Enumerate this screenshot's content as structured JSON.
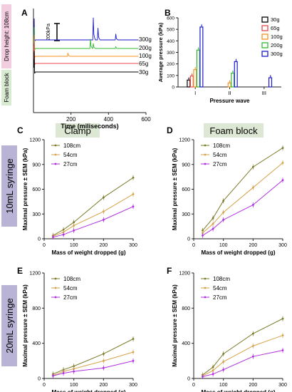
{
  "panel_letters": {
    "a": "A",
    "b": "B",
    "c": "C",
    "d": "D",
    "e": "E",
    "f": "F"
  },
  "side_labels": {
    "drop_height": "Drop height: 108cm",
    "foam_block": "Foam block"
  },
  "row_labels": {
    "syringe_10": "10mL syringe",
    "syringe_20": "20mL syringe"
  },
  "column_headers": {
    "clamp": "Clamp",
    "foam": "Foam block"
  },
  "colors": {
    "w30": "#000000",
    "w65": "#e8474c",
    "w100": "#f6921e",
    "w200": "#2fbb2f",
    "w300": "#1a1acc",
    "h108": "#7b7b2a",
    "h54": "#d6a24a",
    "h27": "#b02ee0",
    "drop_height_box": "#f2cde0",
    "foam_block_box": "#d8ead2",
    "header_box": "#dde8d4",
    "row_box": "#b9b3d6"
  },
  "chart_data": [
    {
      "id": "A",
      "type": "line",
      "xlabel": "Time (miliseconds)",
      "xlim": [
        0,
        600
      ],
      "xticks": [
        200,
        400,
        600
      ],
      "scale_bar": "200kPa",
      "series": [
        {
          "name": "300g",
          "peaks": [
            [
              320,
              260
            ],
            [
              345,
              140
            ],
            [
              440,
              70
            ]
          ]
        },
        {
          "name": "200g",
          "peaks": [
            [
              305,
              110
            ],
            [
              320,
              60
            ],
            [
              440,
              20
            ]
          ]
        },
        {
          "name": "100g",
          "peaks": [
            [
              185,
              40
            ]
          ]
        },
        {
          "name": "65g",
          "peaks": []
        },
        {
          "name": "30g",
          "peaks": []
        }
      ]
    },
    {
      "id": "B",
      "type": "bar",
      "ylabel": "Average pressure (kPa)",
      "xlabel": "Pressure wave",
      "ylim": [
        0,
        600
      ],
      "yticks": [
        0,
        100,
        200,
        300,
        400,
        500,
        600
      ],
      "categories": [
        "I",
        "II",
        "III"
      ],
      "legend_position": "top-right",
      "series": [
        {
          "name": "30g",
          "values": [
            60,
            null,
            null
          ]
        },
        {
          "name": "65g",
          "values": [
            95,
            null,
            null
          ]
        },
        {
          "name": "100g",
          "values": [
            150,
            35,
            null
          ]
        },
        {
          "name": "200g",
          "values": [
            320,
            120,
            null
          ]
        },
        {
          "name": "300g",
          "values": [
            520,
            220,
            80
          ]
        }
      ]
    },
    {
      "id": "C",
      "type": "line",
      "xlabel": "Mass of weight dropped (g)",
      "ylabel": "Maximal pressure ± SEM (kPa)",
      "xlim": [
        0,
        300
      ],
      "ylim": [
        0,
        1200
      ],
      "xticks": [
        0,
        100,
        200,
        300
      ],
      "yticks": [
        0,
        300,
        600,
        900,
        1200
      ],
      "x": [
        30,
        65,
        100,
        200,
        300
      ],
      "series": [
        {
          "name": "108cm",
          "values": [
            40,
            110,
            200,
            500,
            740
          ]
        },
        {
          "name": "54cm",
          "values": [
            30,
            80,
            160,
            330,
            540
          ]
        },
        {
          "name": "27cm",
          "values": [
            20,
            50,
            100,
            230,
            390
          ]
        }
      ]
    },
    {
      "id": "D",
      "type": "line",
      "xlabel": "Mass of weight dropped (g)",
      "ylabel": "Maximal pressure ± SEM (kPa)",
      "xlim": [
        0,
        300
      ],
      "ylim": [
        0,
        1200
      ],
      "xticks": [
        0,
        100,
        200,
        300
      ],
      "yticks": [
        0,
        300,
        600,
        900,
        1200
      ],
      "x": [
        30,
        65,
        100,
        200,
        300
      ],
      "series": [
        {
          "name": "108cm",
          "values": [
            100,
            250,
            460,
            870,
            1100
          ]
        },
        {
          "name": "54cm",
          "values": [
            70,
            180,
            320,
            620,
            920
          ]
        },
        {
          "name": "27cm",
          "values": [
            40,
            120,
            230,
            410,
            710
          ]
        }
      ]
    },
    {
      "id": "E",
      "type": "line",
      "xlabel": "Mass of weight dropped (g)",
      "ylabel": "Maximal pressure ± SEM (kPa)",
      "xlim": [
        0,
        300
      ],
      "ylim": [
        0,
        1200
      ],
      "xticks": [
        0,
        100,
        200,
        300
      ],
      "yticks": [
        0,
        400,
        800,
        1200
      ],
      "x": [
        30,
        65,
        100,
        200,
        300
      ],
      "series": [
        {
          "name": "108cm",
          "values": [
            50,
            100,
            140,
            280,
            450
          ]
        },
        {
          "name": "54cm",
          "values": [
            35,
            80,
            110,
            200,
            300
          ]
        },
        {
          "name": "27cm",
          "values": [
            30,
            60,
            80,
            120,
            200
          ]
        }
      ]
    },
    {
      "id": "F",
      "type": "line",
      "xlabel": "Mass of weight dropped (g)",
      "ylabel": "Maximal pressure ± SEM (kPa)",
      "xlim": [
        0,
        300
      ],
      "ylim": [
        0,
        1200
      ],
      "xticks": [
        0,
        100,
        200,
        300
      ],
      "yticks": [
        0,
        400,
        800,
        1200
      ],
      "x": [
        30,
        65,
        100,
        200,
        300
      ],
      "series": [
        {
          "name": "108cm",
          "values": [
            40,
            130,
            280,
            510,
            680
          ]
        },
        {
          "name": "54cm",
          "values": [
            30,
            90,
            190,
            370,
            490
          ]
        },
        {
          "name": "27cm",
          "values": [
            20,
            50,
            100,
            250,
            320
          ]
        }
      ]
    }
  ]
}
